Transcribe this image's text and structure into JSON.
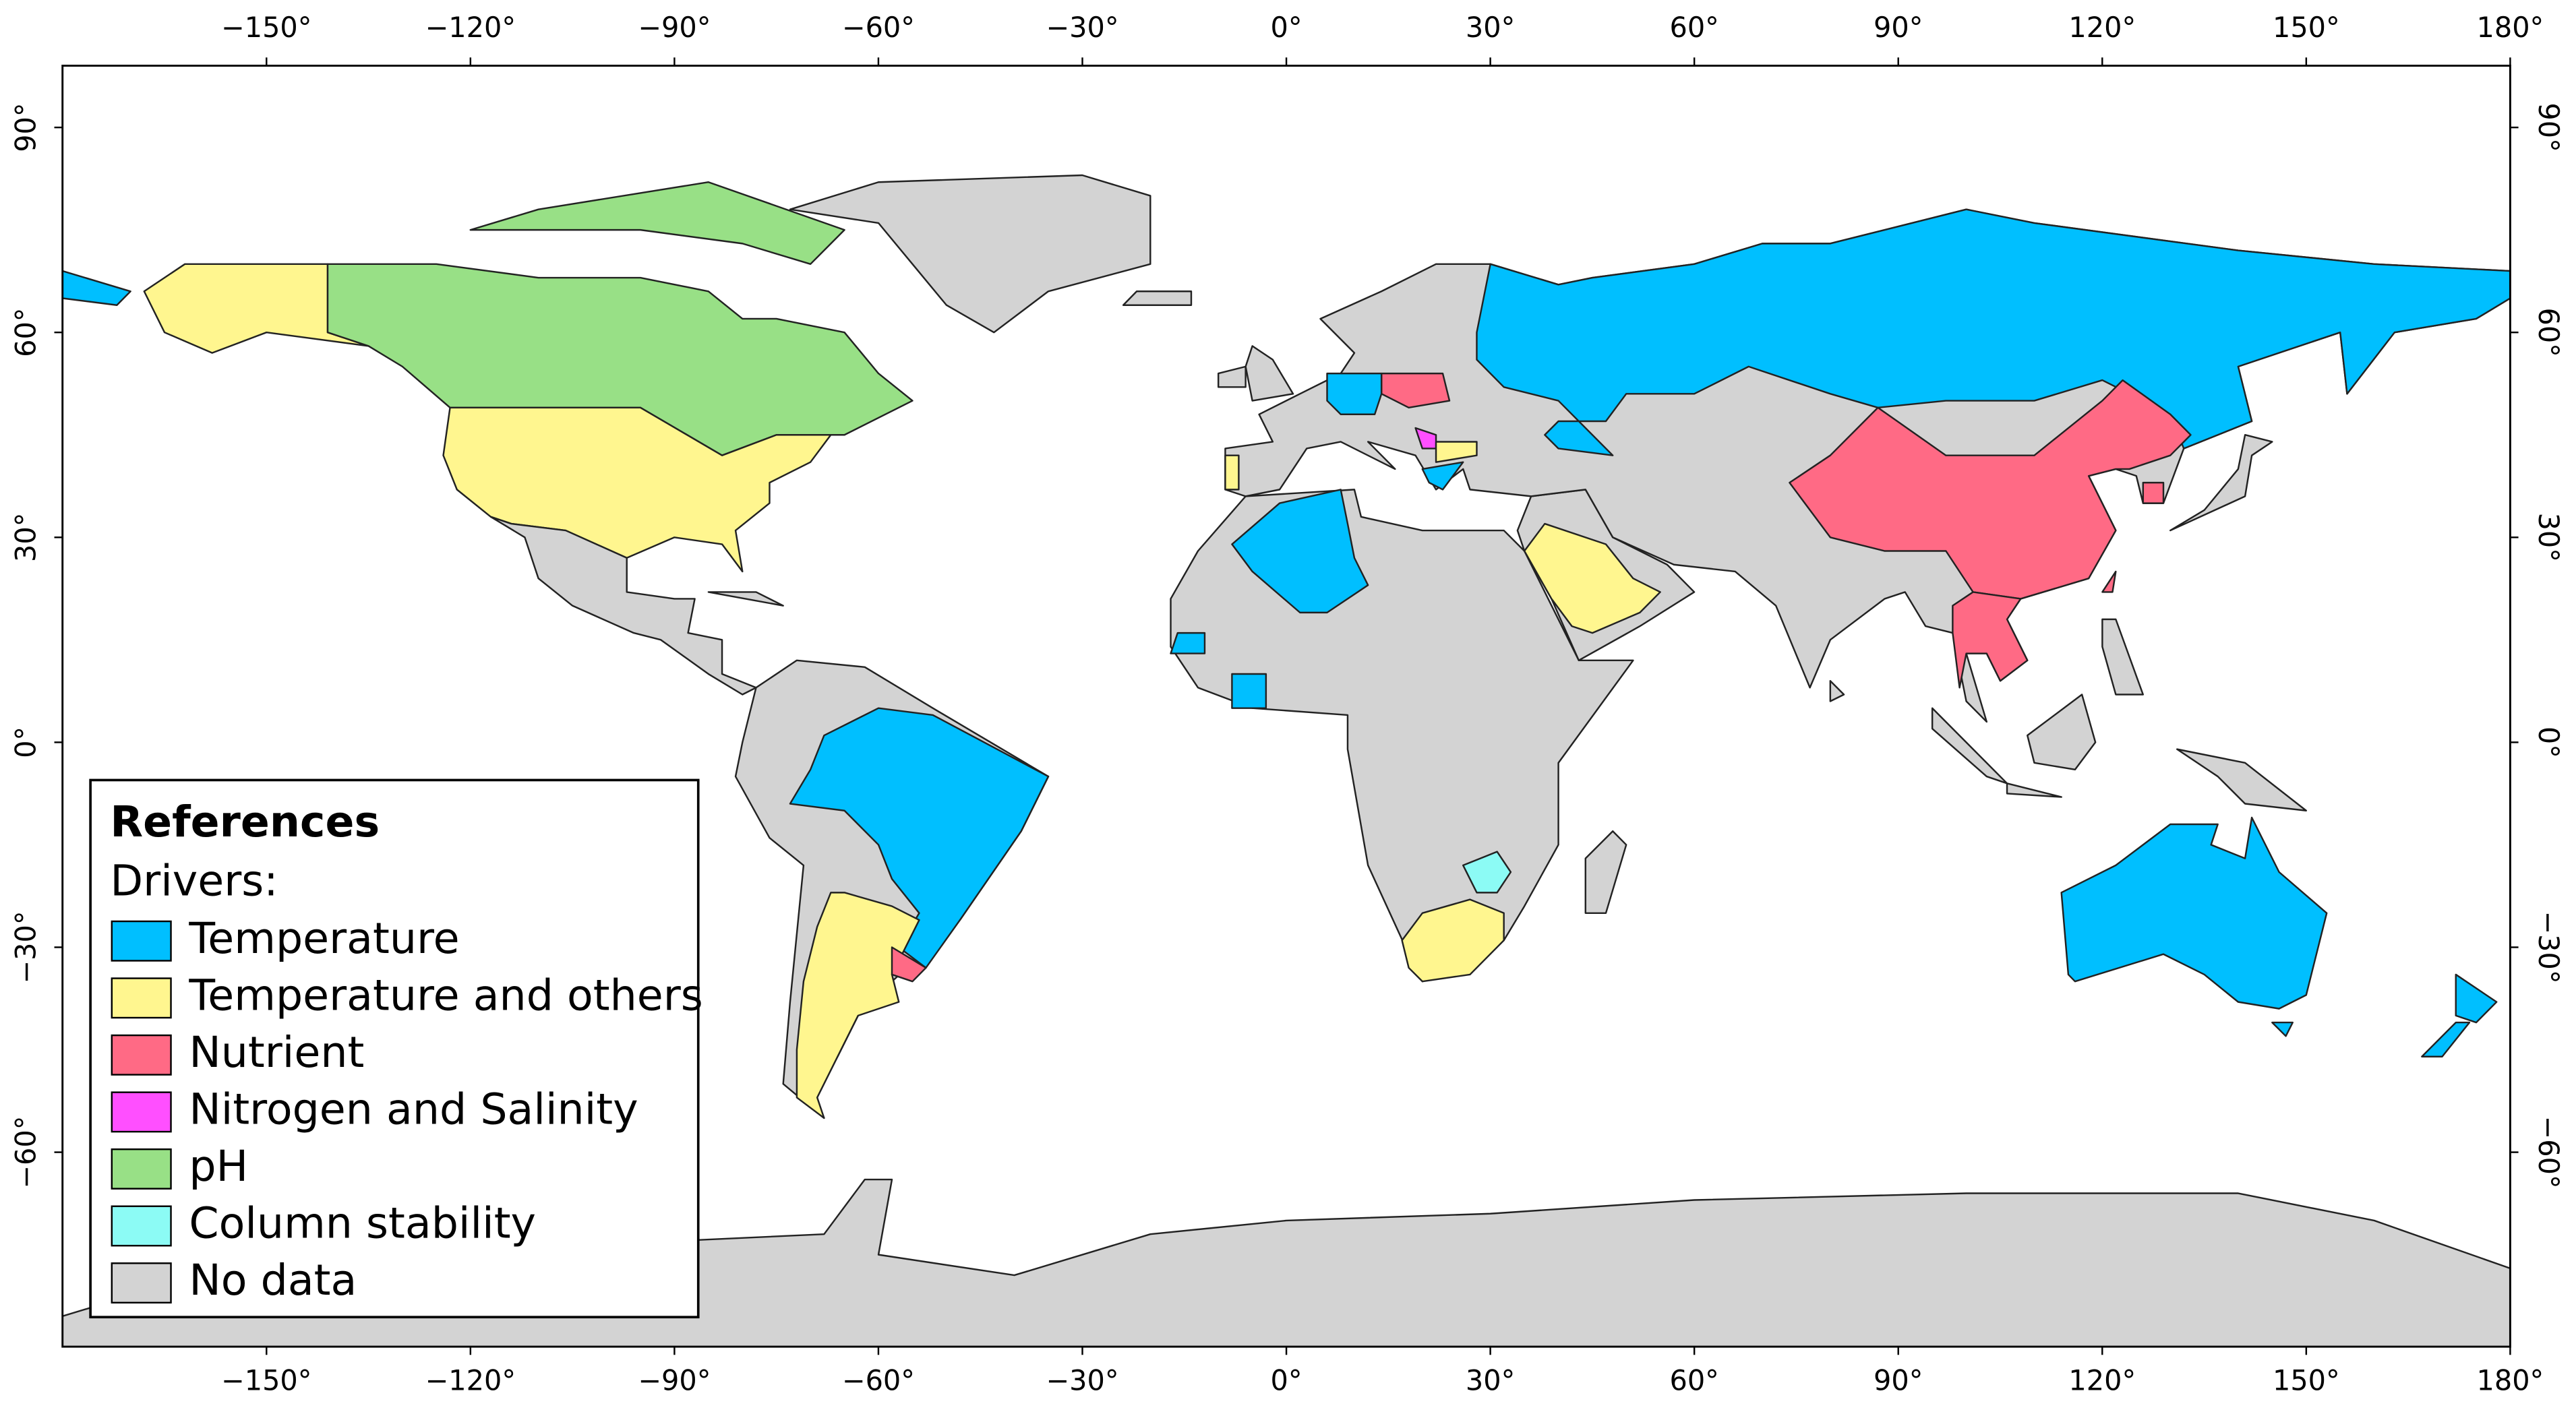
{
  "map": {
    "lon_ticks": [
      {
        "value": -150,
        "label": "−150°"
      },
      {
        "value": -120,
        "label": "−120°"
      },
      {
        "value": -90,
        "label": "−90°"
      },
      {
        "value": -60,
        "label": "−60°"
      },
      {
        "value": -30,
        "label": "−30°"
      },
      {
        "value": 0,
        "label": "0°"
      },
      {
        "value": 30,
        "label": "30°"
      },
      {
        "value": 60,
        "label": "60°"
      },
      {
        "value": 90,
        "label": "90°"
      },
      {
        "value": 120,
        "label": "120°"
      },
      {
        "value": 150,
        "label": "150°"
      },
      {
        "value": 180,
        "label": "180°"
      }
    ],
    "lat_ticks": [
      {
        "value": 90,
        "label": "90°"
      },
      {
        "value": 60,
        "label": "60°"
      },
      {
        "value": 30,
        "label": "30°"
      },
      {
        "value": 0,
        "label": "0°"
      },
      {
        "value": -30,
        "label": "−30°"
      },
      {
        "value": -60,
        "label": "−60°"
      }
    ],
    "legend": {
      "title": "References",
      "subtitle": "Drivers:",
      "items": [
        {
          "label": "Temperature",
          "color": "#00bfff"
        },
        {
          "label": "Temperature and others",
          "color": "#fff68f"
        },
        {
          "label": "Nutrient",
          "color": "#ff6a85"
        },
        {
          "label": "Nitrogen and Salinity",
          "color": "#ff4fff"
        },
        {
          "label": "pH",
          "color": "#98e086"
        },
        {
          "label": "Column stability",
          "color": "#8cfbf5"
        },
        {
          "label": "No data",
          "color": "#d3d3d3"
        }
      ]
    }
  }
}
